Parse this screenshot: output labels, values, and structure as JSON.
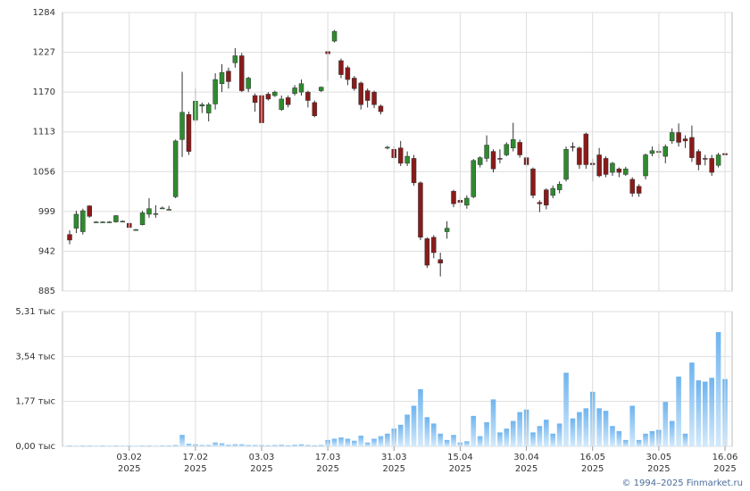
{
  "chart_data": [
    {
      "type": "candlestick",
      "up_color": "#2e8b2e",
      "down_color": "#8b1a1a",
      "grid": true,
      "ylim": [
        885,
        1284
      ],
      "yticks": [
        885,
        942,
        999,
        1056,
        1113,
        1170,
        1227,
        1284
      ],
      "open": [
        966,
        975,
        970,
        1007,
        984,
        984,
        984,
        984,
        985,
        982,
        973,
        980,
        995,
        995,
        1004,
        1002,
        1020,
        1102,
        1138,
        1130,
        1150,
        1140,
        1153,
        1182,
        1200,
        1212,
        1222,
        1175,
        1165,
        1165,
        1167,
        1165,
        1145,
        1162,
        1168,
        1170,
        1170,
        1155,
        1172,
        1228,
        1243,
        1215,
        1205,
        1190,
        1183,
        1172,
        1170,
        1150,
        1090,
        1088,
        1090,
        1068,
        1075,
        1040,
        960,
        962,
        930,
        970,
        1028,
        1015,
        1008,
        1020,
        1066,
        1075,
        1085,
        1075,
        1080,
        1090,
        1098,
        1076,
        1060,
        1012,
        1030,
        1022,
        1030,
        1045,
        1092,
        1090,
        1110,
        1068,
        1080,
        1075,
        1055,
        1060,
        1052,
        1045,
        1035,
        1050,
        1082,
        1085,
        1078,
        1100,
        1112,
        1103,
        1105,
        1085,
        1075,
        1075,
        1065,
        1082
      ],
      "high": [
        972,
        1000,
        1003,
        1008,
        985,
        985,
        985,
        994,
        986,
        983,
        974,
        1000,
        1018,
        1008,
        1006,
        1007,
        1102,
        1199,
        1142,
        1175,
        1155,
        1155,
        1197,
        1210,
        1205,
        1233,
        1226,
        1192,
        1168,
        1168,
        1170,
        1172,
        1165,
        1165,
        1180,
        1188,
        1172,
        1158,
        1178,
        1229,
        1259,
        1218,
        1208,
        1193,
        1185,
        1175,
        1172,
        1152,
        1093,
        1092,
        1100,
        1085,
        1080,
        1042,
        962,
        965,
        940,
        985,
        1030,
        1020,
        1022,
        1074,
        1078,
        1108,
        1088,
        1088,
        1098,
        1126,
        1102,
        1078,
        1062,
        1015,
        1032,
        1036,
        1042,
        1092,
        1098,
        1092,
        1112,
        1075,
        1090,
        1078,
        1070,
        1062,
        1063,
        1048,
        1038,
        1082,
        1092,
        1096,
        1095,
        1118,
        1125,
        1108,
        1122,
        1088,
        1080,
        1080,
        1083,
        1090
      ],
      "low": [
        952,
        968,
        966,
        990,
        983,
        983,
        983,
        983,
        984,
        975,
        972,
        979,
        990,
        990,
        1003,
        1001,
        1018,
        1077,
        1080,
        1126,
        1140,
        1128,
        1145,
        1170,
        1175,
        1205,
        1170,
        1170,
        1142,
        1124,
        1158,
        1163,
        1143,
        1148,
        1165,
        1165,
        1148,
        1134,
        1170,
        1186,
        1241,
        1190,
        1180,
        1172,
        1145,
        1148,
        1147,
        1138,
        1088,
        1074,
        1064,
        1064,
        1036,
        958,
        918,
        932,
        906,
        960,
        1005,
        1005,
        1003,
        1018,
        1062,
        1070,
        1055,
        1068,
        1078,
        1085,
        1076,
        1062,
        1018,
        998,
        1002,
        1018,
        1025,
        1042,
        1085,
        1060,
        1060,
        1042,
        1048,
        1048,
        1050,
        1048,
        1050,
        1020,
        1020,
        1045,
        1078,
        1075,
        1068,
        1096,
        1092,
        1090,
        1070,
        1058,
        1065,
        1050,
        1062,
        1078
      ],
      "close": [
        958,
        995,
        1000,
        992,
        984,
        984,
        984,
        993,
        985,
        976,
        973,
        997,
        1003,
        996,
        1004,
        1002,
        1100,
        1141,
        1085,
        1157,
        1152,
        1152,
        1188,
        1198,
        1185,
        1222,
        1172,
        1190,
        1155,
        1126,
        1160,
        1170,
        1160,
        1152,
        1176,
        1182,
        1158,
        1136,
        1177,
        1225,
        1257,
        1195,
        1188,
        1175,
        1152,
        1158,
        1152,
        1142,
        1091,
        1076,
        1068,
        1078,
        1040,
        962,
        922,
        940,
        925,
        975,
        1010,
        1012,
        1018,
        1072,
        1076,
        1094,
        1060,
        1074,
        1095,
        1102,
        1080,
        1066,
        1022,
        1010,
        1008,
        1032,
        1038,
        1088,
        1091,
        1066,
        1066,
        1066,
        1050,
        1052,
        1068,
        1055,
        1060,
        1025,
        1025,
        1080,
        1086,
        1084,
        1092,
        1112,
        1098,
        1100,
        1076,
        1066,
        1074,
        1055,
        1080,
        1080
      ]
    },
    {
      "type": "bar",
      "color": "#7dbef0",
      "grid": true,
      "ylim": [
        0,
        5.31
      ],
      "yticks": [
        {
          "value": 0,
          "label": "0,00 тыс"
        },
        {
          "value": 1.77,
          "label": "1,77 тыс"
        },
        {
          "value": 3.54,
          "label": "3,54 тыс"
        },
        {
          "value": 5.31,
          "label": "5,31 тыс"
        }
      ],
      "categories": [
        null,
        null,
        null,
        null,
        null,
        null,
        null,
        null,
        null,
        "03.02\n2025",
        null,
        null,
        null,
        null,
        null,
        null,
        null,
        null,
        null,
        "17.02\n2025",
        null,
        null,
        null,
        null,
        null,
        null,
        null,
        null,
        null,
        "03.03\n2025",
        null,
        null,
        null,
        null,
        null,
        null,
        null,
        null,
        null,
        "17.03\n2025",
        null,
        null,
        null,
        null,
        null,
        null,
        null,
        null,
        null,
        "31.03\n2025",
        null,
        null,
        null,
        null,
        null,
        null,
        null,
        null,
        null,
        "15.04\n2025",
        null,
        null,
        null,
        null,
        null,
        null,
        null,
        null,
        null,
        "30.04\n2025",
        null,
        null,
        null,
        null,
        null,
        null,
        null,
        null,
        null,
        "16.05\n2025",
        null,
        null,
        null,
        null,
        null,
        null,
        null,
        null,
        null,
        "30.05\n2025",
        null,
        null,
        null,
        null,
        null,
        null,
        null,
        null,
        null,
        "16.06\n2025"
      ],
      "values": [
        0.03,
        0.02,
        0.03,
        0.03,
        0.02,
        0.03,
        0.02,
        0.03,
        0.02,
        0.03,
        0.02,
        0.03,
        0.03,
        0.02,
        0.03,
        0.03,
        0.05,
        0.45,
        0.1,
        0.08,
        0.05,
        0.05,
        0.15,
        0.12,
        0.06,
        0.08,
        0.08,
        0.05,
        0.05,
        0.05,
        0.04,
        0.05,
        0.06,
        0.04,
        0.06,
        0.08,
        0.05,
        0.04,
        0.05,
        0.25,
        0.3,
        0.35,
        0.3,
        0.22,
        0.42,
        0.15,
        0.3,
        0.4,
        0.5,
        0.7,
        0.85,
        1.25,
        1.6,
        2.25,
        1.15,
        0.9,
        0.5,
        0.25,
        0.45,
        0.15,
        0.2,
        1.2,
        0.4,
        0.95,
        1.85,
        0.55,
        0.7,
        1.0,
        1.35,
        1.45,
        0.55,
        0.8,
        1.05,
        0.5,
        0.9,
        2.9,
        1.1,
        1.35,
        1.5,
        2.15,
        1.5,
        1.4,
        0.8,
        0.6,
        0.25,
        1.6,
        0.25,
        0.5,
        0.6,
        0.65,
        1.75,
        1.0,
        2.75,
        0.5,
        3.3,
        2.6,
        2.55,
        2.7,
        4.5,
        2.65
      ]
    }
  ],
  "footer": "© 1994–2025 Finmarket.ru"
}
